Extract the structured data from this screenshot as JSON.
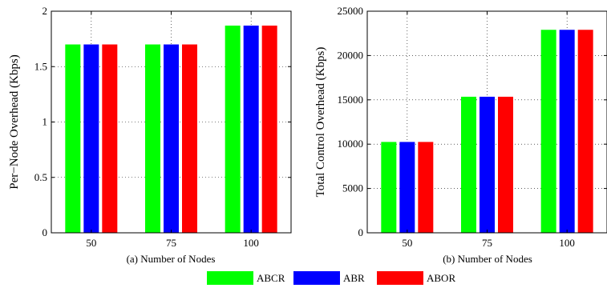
{
  "colors": {
    "ABCR": "#00ff00",
    "ABR": "#0000ff",
    "ABOR": "#ff0000"
  },
  "legend": [
    "ABCR",
    "ABR",
    "ABOR"
  ],
  "chart_data": [
    {
      "type": "bar",
      "caption": "(a) Number of Nodes",
      "xlabel": "",
      "ylabel": "Per−Node Overhead (Kbps)",
      "categories": [
        "50",
        "75",
        "100"
      ],
      "ylim": [
        0,
        2
      ],
      "yticks": [
        "0",
        "0.5",
        "1",
        "1.5",
        "2"
      ],
      "grid": true,
      "series": [
        {
          "name": "ABCR",
          "values": [
            1.7,
            1.7,
            1.87
          ]
        },
        {
          "name": "ABR",
          "values": [
            1.7,
            1.7,
            1.87
          ]
        },
        {
          "name": "ABOR",
          "values": [
            1.7,
            1.7,
            1.87
          ]
        }
      ]
    },
    {
      "type": "bar",
      "caption": "(b) Number of Nodes",
      "xlabel": "",
      "ylabel": "Total Control Overhead (Kbps)",
      "categories": [
        "50",
        "75",
        "100"
      ],
      "ylim": [
        0,
        25000
      ],
      "yticks": [
        "0",
        "5000",
        "10000",
        "15000",
        "20000",
        "25000"
      ],
      "grid": true,
      "series": [
        {
          "name": "ABCR",
          "values": [
            10250,
            15350,
            22900
          ]
        },
        {
          "name": "ABR",
          "values": [
            10250,
            15350,
            22900
          ]
        },
        {
          "name": "ABOR",
          "values": [
            10250,
            15350,
            22900
          ]
        }
      ]
    }
  ]
}
